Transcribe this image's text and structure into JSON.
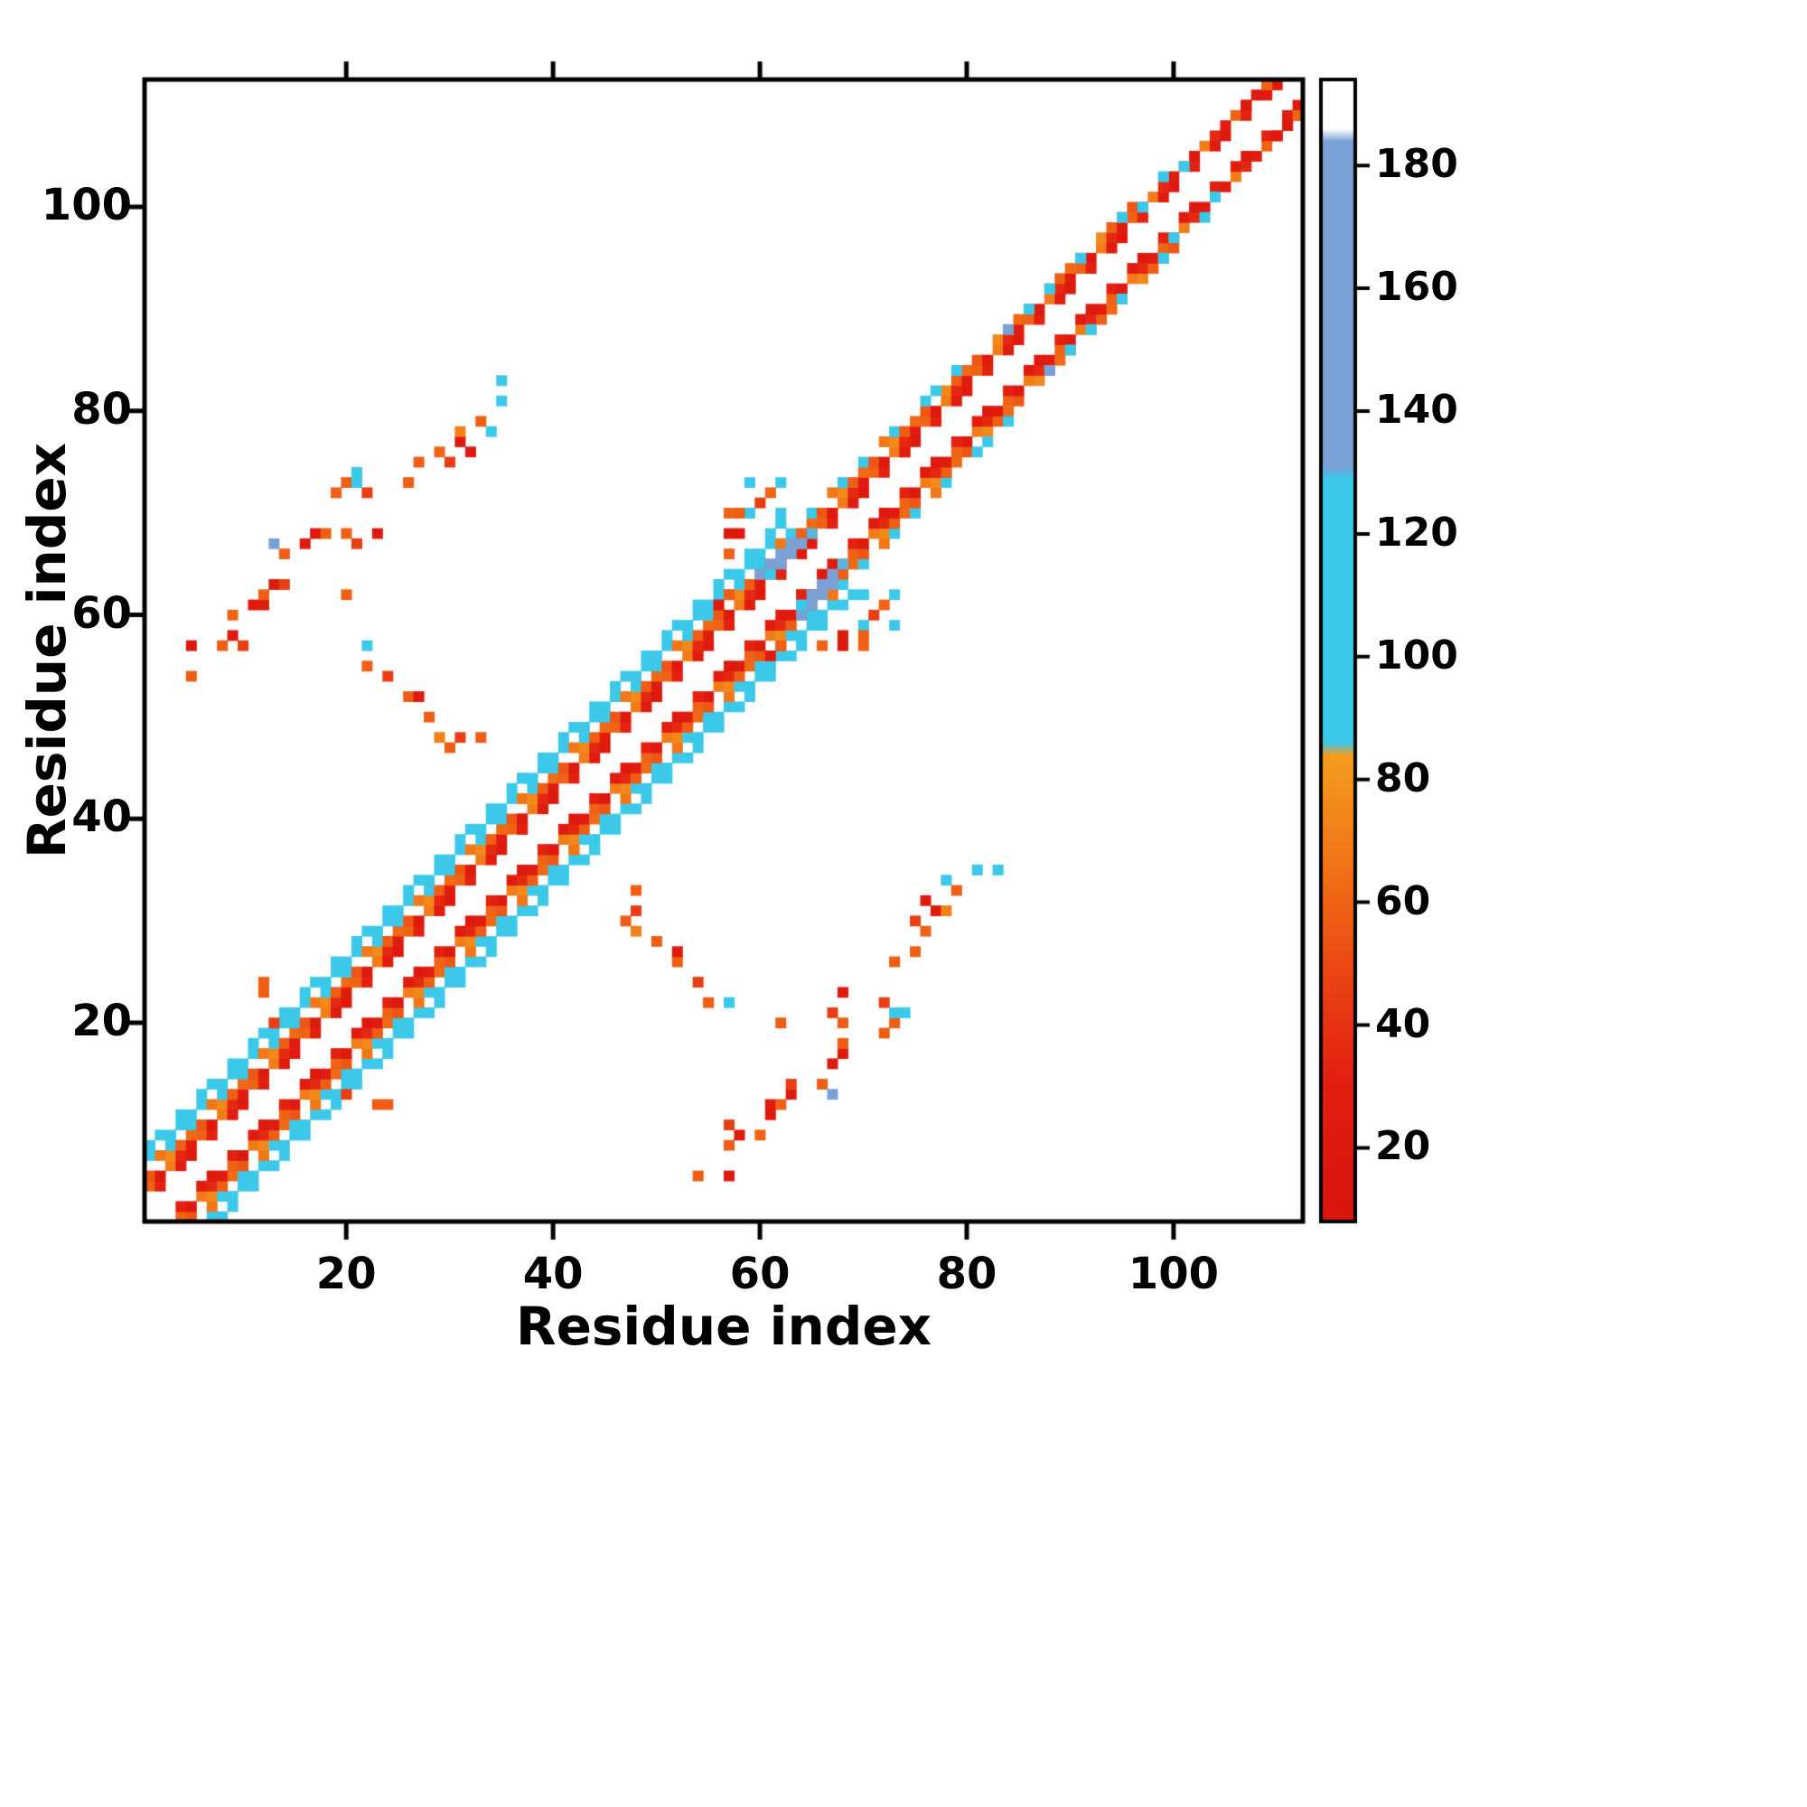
{
  "figure": {
    "background_color": "#ffffff"
  },
  "chart_data": {
    "type": "heatmap",
    "title": "",
    "xlabel": "Residue index",
    "ylabel": "Residue index",
    "n_residues": 112,
    "symmetric": true,
    "x_range": [
      0.5,
      112.5
    ],
    "y_range": [
      0.5,
      112.5
    ],
    "x_ticks": [
      20,
      40,
      60,
      80,
      100
    ],
    "y_ticks": [
      20,
      40,
      60,
      80,
      100
    ],
    "grid": false,
    "colorbar": {
      "position": "right",
      "ticks": [
        20,
        40,
        60,
        80,
        100,
        120,
        140,
        160,
        180
      ],
      "vmin": 8,
      "vmax": 194,
      "stops": [
        {
          "v": 8,
          "color": "#d8160c"
        },
        {
          "v": 30,
          "color": "#e11d10"
        },
        {
          "v": 48,
          "color": "#ea4413"
        },
        {
          "v": 66,
          "color": "#f17317"
        },
        {
          "v": 84,
          "color": "#f59d1e"
        },
        {
          "v": 86,
          "color": "#3cc8e9"
        },
        {
          "v": 129,
          "color": "#3cc8e9"
        },
        {
          "v": 131,
          "color": "#7aa1d5"
        },
        {
          "v": 184,
          "color": "#7aa1d5"
        },
        {
          "v": 186,
          "color": "#ffffff"
        },
        {
          "v": 194,
          "color": "#ffffff"
        }
      ]
    },
    "band_segments": [
      {
        "from": 1,
        "to": 37,
        "max_sep": 7
      },
      {
        "from": 37,
        "to": 62,
        "max_sep": 7
      },
      {
        "from": 62,
        "to": 74,
        "max_sep": 5
      },
      {
        "from": 74,
        "to": 96,
        "max_sep": 4
      },
      {
        "from": 96,
        "to": 110,
        "max_sep": 3
      }
    ],
    "band_stripes": [
      {
        "sep": 2,
        "values": [
          22,
          188,
          32,
          188,
          26
        ]
      },
      {
        "sep": 3,
        "values": [
          26,
          60,
          22,
          70,
          35
        ]
      },
      {
        "sep": 4,
        "values": [
          62,
          55,
          188,
          75,
          58
        ]
      },
      {
        "sep": 5,
        "values": [
          98,
          188,
          68,
          100,
          188
        ]
      },
      {
        "sep": 6,
        "values": [
          100,
          104,
          188,
          98,
          108
        ]
      },
      {
        "sep": 7,
        "values": [
          188,
          102,
          98,
          188,
          104
        ]
      }
    ],
    "contacts": [
      [
        5,
        54,
        58
      ],
      [
        5,
        57,
        22
      ],
      [
        8,
        57,
        58
      ],
      [
        9,
        58,
        22
      ],
      [
        9,
        60,
        60
      ],
      [
        10,
        57,
        45
      ],
      [
        11,
        61,
        22
      ],
      [
        12,
        61,
        26
      ],
      [
        12,
        62,
        58
      ],
      [
        13,
        63,
        22
      ],
      [
        14,
        63,
        45
      ],
      [
        13,
        67,
        152
      ],
      [
        14,
        66,
        58
      ],
      [
        16,
        67,
        22
      ],
      [
        17,
        68,
        22
      ],
      [
        18,
        68,
        58
      ],
      [
        20,
        68,
        58
      ],
      [
        21,
        67,
        45
      ],
      [
        23,
        68,
        22
      ],
      [
        20,
        73,
        58
      ],
      [
        22,
        72,
        45
      ],
      [
        26,
        73,
        58
      ],
      [
        27,
        75,
        58
      ],
      [
        29,
        76,
        60
      ],
      [
        30,
        75,
        45
      ],
      [
        31,
        77,
        22
      ],
      [
        31,
        78,
        72
      ],
      [
        32,
        76,
        22
      ],
      [
        33,
        79,
        58
      ],
      [
        34,
        78,
        95
      ],
      [
        35,
        81,
        100
      ],
      [
        35,
        83,
        95
      ],
      [
        19,
        72,
        58
      ],
      [
        21,
        73,
        100
      ],
      [
        21,
        74,
        95
      ],
      [
        20,
        62,
        58
      ],
      [
        22,
        57,
        95
      ],
      [
        22,
        55,
        58
      ],
      [
        24,
        54,
        45
      ],
      [
        26,
        52,
        58
      ],
      [
        27,
        52,
        22
      ],
      [
        28,
        50,
        58
      ],
      [
        29,
        48,
        72
      ],
      [
        30,
        47,
        58
      ],
      [
        31,
        48,
        45
      ],
      [
        33,
        48,
        58
      ],
      [
        12,
        23,
        58
      ],
      [
        12,
        24,
        58
      ],
      [
        13,
        20,
        45
      ],
      [
        60,
        64,
        148
      ],
      [
        61,
        64,
        120
      ],
      [
        61,
        65,
        155
      ],
      [
        62,
        65,
        160
      ],
      [
        62,
        66,
        145
      ],
      [
        63,
        66,
        150
      ],
      [
        63,
        67,
        135
      ],
      [
        64,
        67,
        140
      ],
      [
        65,
        68,
        130
      ],
      [
        59,
        70,
        100
      ],
      [
        59,
        73,
        95
      ],
      [
        62,
        70,
        105
      ],
      [
        62,
        73,
        100
      ],
      [
        56,
        61,
        22
      ],
      [
        57,
        62,
        58
      ],
      [
        57,
        66,
        60
      ],
      [
        57,
        68,
        22
      ],
      [
        58,
        70,
        58
      ],
      [
        58,
        68,
        22
      ],
      [
        60,
        71,
        45
      ],
      [
        61,
        72,
        60
      ],
      [
        57,
        70,
        60
      ],
      [
        76,
        81,
        100
      ],
      [
        77,
        82,
        95
      ],
      [
        79,
        84,
        98
      ],
      [
        84,
        88,
        140
      ],
      [
        86,
        90,
        100
      ],
      [
        88,
        92,
        100
      ],
      [
        91,
        95,
        98
      ],
      [
        95,
        99,
        98
      ],
      [
        97,
        100,
        95
      ],
      [
        99,
        103,
        95
      ],
      [
        101,
        104,
        98
      ],
      [
        107,
        110,
        22
      ],
      [
        108,
        111,
        22
      ],
      [
        109,
        112,
        60
      ]
    ]
  }
}
